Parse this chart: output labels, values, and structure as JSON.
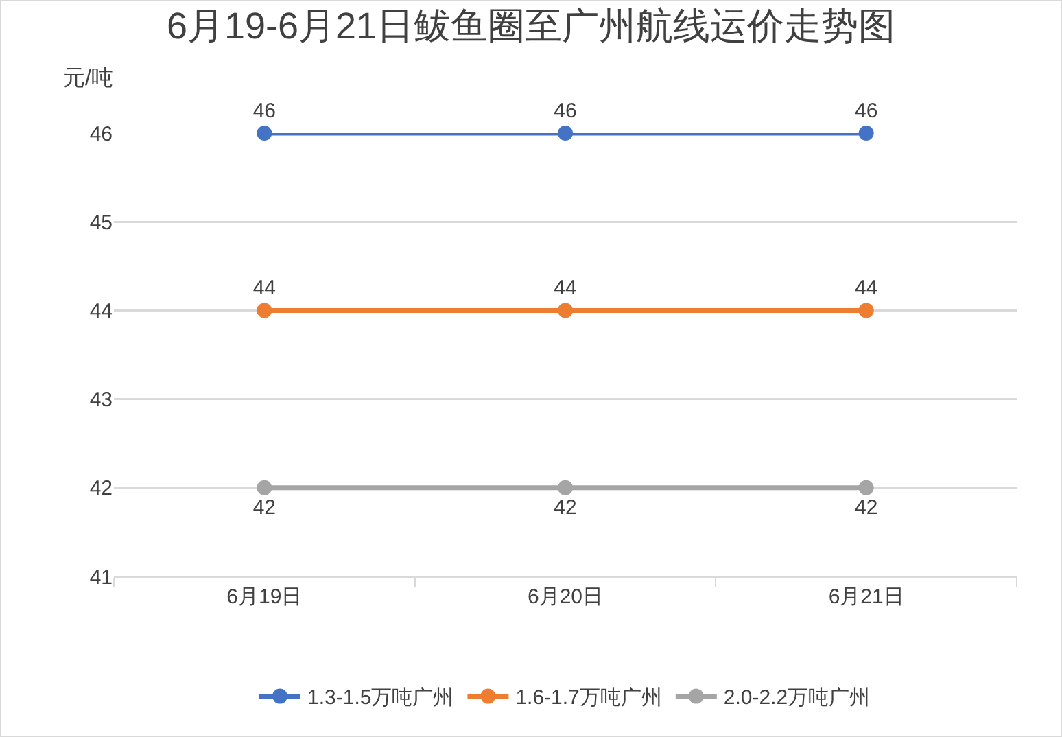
{
  "chart_data": {
    "type": "line",
    "title": "6月19-6月21日鲅鱼圈至广州航线运价走势图",
    "ylabel": "元/吨",
    "categories": [
      "6月19日",
      "6月20日",
      "6月21日"
    ],
    "series": [
      {
        "name": "1.3-1.5万吨广州",
        "color": "#4472c4",
        "values": [
          46,
          46,
          46
        ]
      },
      {
        "name": "1.6-1.7万吨广州",
        "color": "#ed7d31",
        "values": [
          44,
          44,
          44
        ]
      },
      {
        "name": "2.0-2.2万吨广州",
        "color": "#a5a5a5",
        "values": [
          42,
          42,
          42
        ]
      }
    ],
    "ylim": [
      41,
      46
    ],
    "yticks": [
      41,
      42,
      43,
      44,
      45,
      46
    ],
    "grid": "y",
    "legend": "bottom",
    "marker": "circle",
    "line_style": "solid",
    "data_labels": true
  }
}
